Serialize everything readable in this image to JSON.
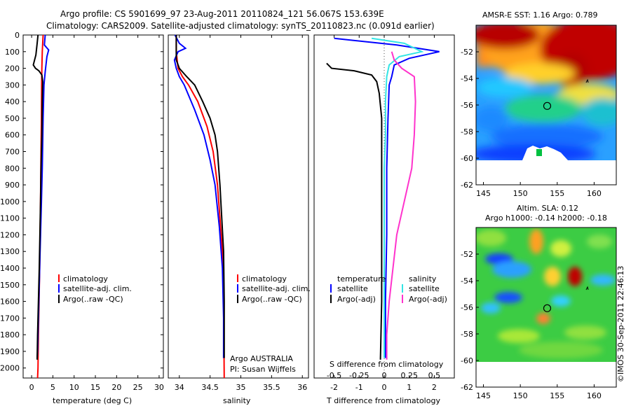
{
  "header": {
    "line1": "Argo profile: CS 5901699_97 23-Aug-2011 20110824_121 56.067S 153.639E",
    "line2": "Climatology: CARS2009. Satellite-adjusted climatology: synTS_20110823.nc (0.091d earlier)"
  },
  "depth_ticks": [
    "0",
    "100",
    "200",
    "300",
    "400",
    "500",
    "600",
    "700",
    "800",
    "900",
    "1000",
    "1100",
    "1200",
    "1300",
    "1400",
    "1500",
    "1600",
    "1700",
    "1800",
    "1900",
    "2000"
  ],
  "colors": {
    "red": "#ff0000",
    "blue": "#0000ff",
    "black": "#000000",
    "cyan": "#33e5e5",
    "magenta": "#ff33cc"
  },
  "chart_data": [
    {
      "type": "line",
      "name": "temperature",
      "xlabel": "temperature (deg C)",
      "ylabel": "depth",
      "xlim": [
        -2,
        31
      ],
      "ylim": [
        2060,
        0
      ],
      "xticks": [
        "0",
        "5",
        "10",
        "15",
        "20",
        "25",
        "30"
      ],
      "legend": [
        "climatology",
        "satellite-adj. clim.",
        "Argo(..raw -QC)"
      ],
      "series": [
        {
          "name": "climatology",
          "color": "red",
          "points": [
            [
              2.7,
              0
            ],
            [
              2.6,
              50
            ],
            [
              2.5,
              100
            ],
            [
              2.4,
              200
            ],
            [
              2.35,
              300
            ],
            [
              2.3,
              500
            ],
            [
              2.2,
              700
            ],
            [
              2.1,
              1000
            ],
            [
              2.0,
              1200
            ],
            [
              1.9,
              1400
            ],
            [
              1.75,
              1600
            ],
            [
              1.6,
              1800
            ],
            [
              1.5,
              2000
            ],
            [
              1.4,
              2060
            ]
          ]
        },
        {
          "name": "satellite-adj. clim.",
          "color": "blue",
          "points": [
            [
              3.2,
              0
            ],
            [
              3.0,
              60
            ],
            [
              4.0,
              90
            ],
            [
              3.6,
              130
            ],
            [
              3.2,
              220
            ],
            [
              2.9,
              300
            ],
            [
              2.7,
              500
            ],
            [
              2.5,
              800
            ],
            [
              2.3,
              1000
            ],
            [
              2.1,
              1200
            ],
            [
              1.9,
              1400
            ],
            [
              1.7,
              1600
            ],
            [
              1.5,
              1800
            ],
            [
              1.4,
              1900
            ],
            [
              1.3,
              1940
            ]
          ]
        },
        {
          "name": "Argo(..raw -QC)",
          "color": "black",
          "points": [
            [
              1.5,
              0
            ],
            [
              1.3,
              50
            ],
            [
              1.0,
              120
            ],
            [
              0.4,
              180
            ],
            [
              0.9,
              200
            ],
            [
              1.7,
              215
            ],
            [
              2.4,
              240
            ],
            [
              2.6,
              280
            ],
            [
              2.5,
              400
            ],
            [
              2.4,
              600
            ],
            [
              2.2,
              800
            ],
            [
              2.1,
              1000
            ],
            [
              1.95,
              1200
            ],
            [
              1.8,
              1400
            ],
            [
              1.6,
              1600
            ],
            [
              1.4,
              1800
            ],
            [
              1.3,
              1950
            ]
          ]
        }
      ]
    },
    {
      "type": "line",
      "name": "salinity",
      "xlabel": "salinity",
      "ylabel": "depth",
      "xlim": [
        33.82,
        36.1
      ],
      "ylim": [
        2060,
        0
      ],
      "xticks": [
        "34",
        "34.5",
        "35",
        "35.5",
        "36"
      ],
      "legend": [
        "climatology",
        "satellite-adj. clim.",
        "Argo(..raw -QC)"
      ],
      "annotations": [
        "Argo AUSTRALIA",
        "PI: Susan Wijffels"
      ],
      "series": [
        {
          "name": "climatology",
          "color": "red",
          "points": [
            [
              33.95,
              0
            ],
            [
              33.95,
              100
            ],
            [
              33.98,
              200
            ],
            [
              34.05,
              250
            ],
            [
              34.15,
              300
            ],
            [
              34.3,
              400
            ],
            [
              34.45,
              550
            ],
            [
              34.55,
              700
            ],
            [
              34.62,
              900
            ],
            [
              34.66,
              1100
            ],
            [
              34.7,
              1300
            ],
            [
              34.72,
              1600
            ],
            [
              34.73,
              2060
            ]
          ]
        },
        {
          "name": "satellite-adj. clim.",
          "color": "blue",
          "points": [
            [
              33.93,
              0
            ],
            [
              34.0,
              50
            ],
            [
              34.1,
              80
            ],
            [
              33.98,
              100
            ],
            [
              33.92,
              150
            ],
            [
              33.95,
              200
            ],
            [
              34.0,
              250
            ],
            [
              34.08,
              300
            ],
            [
              34.25,
              450
            ],
            [
              34.4,
              600
            ],
            [
              34.5,
              750
            ],
            [
              34.58,
              900
            ],
            [
              34.65,
              1150
            ],
            [
              34.7,
              1400
            ],
            [
              34.72,
              1700
            ],
            [
              34.72,
              1940
            ]
          ]
        },
        {
          "name": "Argo(..raw -QC)",
          "color": "black",
          "points": [
            [
              33.95,
              0
            ],
            [
              33.95,
              150
            ],
            [
              34.0,
              200
            ],
            [
              34.12,
              250
            ],
            [
              34.25,
              300
            ],
            [
              34.38,
              400
            ],
            [
              34.5,
              500
            ],
            [
              34.58,
              600
            ],
            [
              34.62,
              700
            ],
            [
              34.66,
              900
            ],
            [
              34.69,
              1100
            ],
            [
              34.72,
              1300
            ],
            [
              34.73,
              1600
            ],
            [
              34.73,
              1940
            ]
          ]
        }
      ]
    },
    {
      "type": "line",
      "name": "difference",
      "xlabel": "T difference from climatology",
      "xlabel_top": "S difference from climatology",
      "ylabel": "depth",
      "xlim": [
        -2.8,
        2.8
      ],
      "ylim": [
        2060,
        0
      ],
      "xticks_T": [
        "-2",
        "-1",
        "0",
        "1",
        "2"
      ],
      "xticks_S": [
        "-0.5",
        "-0.25",
        "0",
        "0.25",
        "0.5"
      ],
      "legend_temperature": {
        "heading": "temperature",
        "items": [
          "satellite",
          "Argo(-adj)"
        ]
      },
      "legend_salinity": {
        "heading": "salinity",
        "items": [
          "satellite",
          "Argo(-adj)"
        ]
      },
      "series": [
        {
          "name": "T satellite",
          "color": "blue",
          "points": [
            [
              -2.0,
              20
            ],
            [
              0.5,
              60
            ],
            [
              2.2,
              100
            ],
            [
              1.0,
              140
            ],
            [
              0.4,
              180
            ],
            [
              0.3,
              250
            ],
            [
              0.2,
              300
            ],
            [
              0.15,
              500
            ],
            [
              0.1,
              800
            ],
            [
              0.1,
              1200
            ],
            [
              0.05,
              1600
            ],
            [
              0.05,
              1940
            ]
          ]
        },
        {
          "name": "T Argo(-adj)",
          "color": "black",
          "points": [
            [
              -2.3,
              170
            ],
            [
              -2.1,
              200
            ],
            [
              -1.2,
              215
            ],
            [
              -0.5,
              240
            ],
            [
              -0.3,
              280
            ],
            [
              -0.2,
              350
            ],
            [
              -0.1,
              500
            ],
            [
              -0.1,
              800
            ],
            [
              -0.1,
              1200
            ],
            [
              -0.1,
              1600
            ],
            [
              -0.15,
              1950
            ]
          ]
        },
        {
          "name": "S satellite",
          "color": "cyan",
          "points": [
            [
              -0.5,
              20
            ],
            [
              0.8,
              50
            ],
            [
              1.5,
              100
            ],
            [
              0.6,
              130
            ],
            [
              0.2,
              180
            ],
            [
              0.1,
              250
            ],
            [
              0.05,
              400
            ],
            [
              0.05,
              600
            ],
            [
              0.0,
              800
            ],
            [
              0.0,
              1200
            ],
            [
              0.0,
              1600
            ],
            [
              0.0,
              1940
            ]
          ]
        },
        {
          "name": "S Argo(-adj)",
          "color": "magenta",
          "points": [
            [
              0.3,
              100
            ],
            [
              0.4,
              150
            ],
            [
              0.7,
              200
            ],
            [
              1.2,
              250
            ],
            [
              1.25,
              400
            ],
            [
              1.2,
              600
            ],
            [
              1.1,
              800
            ],
            [
              0.8,
              1000
            ],
            [
              0.5,
              1200
            ],
            [
              0.35,
              1400
            ],
            [
              0.2,
              1600
            ],
            [
              0.1,
              1800
            ],
            [
              0.1,
              1950
            ]
          ]
        }
      ]
    },
    {
      "type": "heatmap",
      "name": "sst",
      "title": "AMSR-E SST: 1.16 Argo: 0.789",
      "xlim": [
        144,
        163
      ],
      "ylim": [
        -62,
        -50
      ],
      "xticks": [
        "145",
        "150",
        "155",
        "160"
      ],
      "yticks": [
        "-52",
        "-54",
        "-56",
        "-58",
        "-60",
        "-62"
      ],
      "argo_position": [
        153.64,
        -56.07
      ]
    },
    {
      "type": "heatmap",
      "name": "sla",
      "title_line1": "Altim. SLA: 0.12",
      "title_line2": "Argo h1000: -0.14 h2000: -0.18",
      "xlim": [
        144,
        163
      ],
      "ylim": [
        -62,
        -50
      ],
      "xticks": [
        "145",
        "150",
        "155",
        "160"
      ],
      "yticks": [
        "-52",
        "-54",
        "-56",
        "-58",
        "-60",
        "-62"
      ],
      "argo_position": [
        153.64,
        -56.07
      ]
    }
  ],
  "footer": {
    "credit": "©IMOS 30-Sep-2011 22:46:13"
  }
}
